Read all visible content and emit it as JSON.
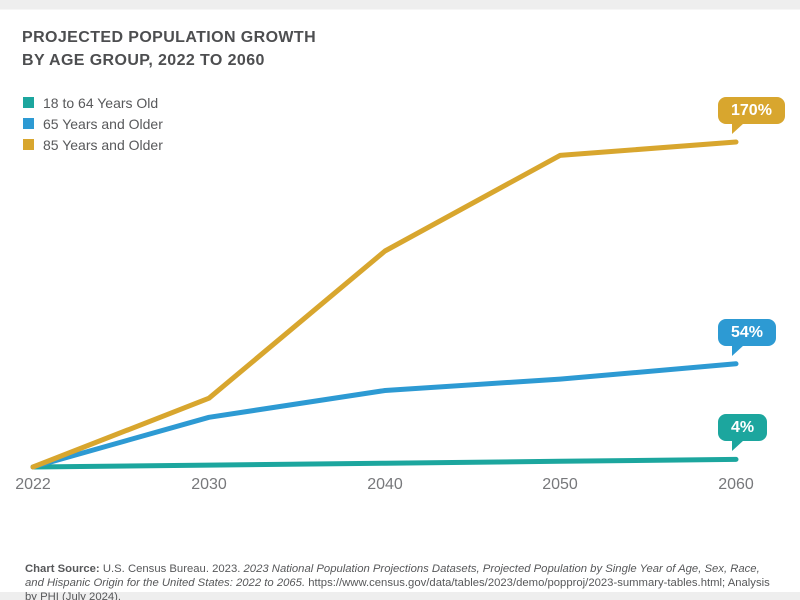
{
  "header": {
    "title_line1": "PROJECTED POPULATION GROWTH",
    "title_line2": "BY AGE GROUP, 2022 TO 2060"
  },
  "legend": {
    "items": [
      {
        "label": "18 to 64 Years Old",
        "color": "#1CA69E"
      },
      {
        "label": "65 Years and Older",
        "color": "#2D9AD3"
      },
      {
        "label": "85 Years and Older",
        "color": "#D8A62E"
      }
    ]
  },
  "chart_data": {
    "type": "line",
    "title": "PROJECTED POPULATION GROWTH BY AGE GROUP, 2022 TO 2060",
    "x": [
      2022,
      2030,
      2040,
      2050,
      2060
    ],
    "x_tick_labels": [
      "2022",
      "2030",
      "2040",
      "2050",
      "2060"
    ],
    "unit": "%",
    "ylim": [
      0,
      170
    ],
    "grid": false,
    "y_axis_visible": false,
    "legend_position": "top-left",
    "series": [
      {
        "name": "18 to 64 Years Old",
        "color": "#1CA69E",
        "values": [
          0,
          1,
          2,
          3,
          4
        ],
        "end_label": "4%"
      },
      {
        "name": "65 Years and Older",
        "color": "#2D9AD3",
        "values": [
          0,
          26,
          40,
          46,
          54
        ],
        "end_label": "54%"
      },
      {
        "name": "85 Years and Older",
        "color": "#D8A62E",
        "values": [
          0,
          36,
          113,
          163,
          170
        ],
        "end_label": "170%"
      }
    ]
  },
  "footer": {
    "source_label": "Chart Source:",
    "source_regular1": " U.S. Census Bureau. 2023. ",
    "source_italic": "2023 National Population Projections Datasets, Projected Population by Single Year of Age, Sex, Race, and Hispanic Origin for the United States: 2022 to 2065.",
    "source_regular2": " https://www.census.gov/data/tables/2023/demo/popproj/2023-summary-tables.html; Analysis by PHI (July 2024)."
  }
}
